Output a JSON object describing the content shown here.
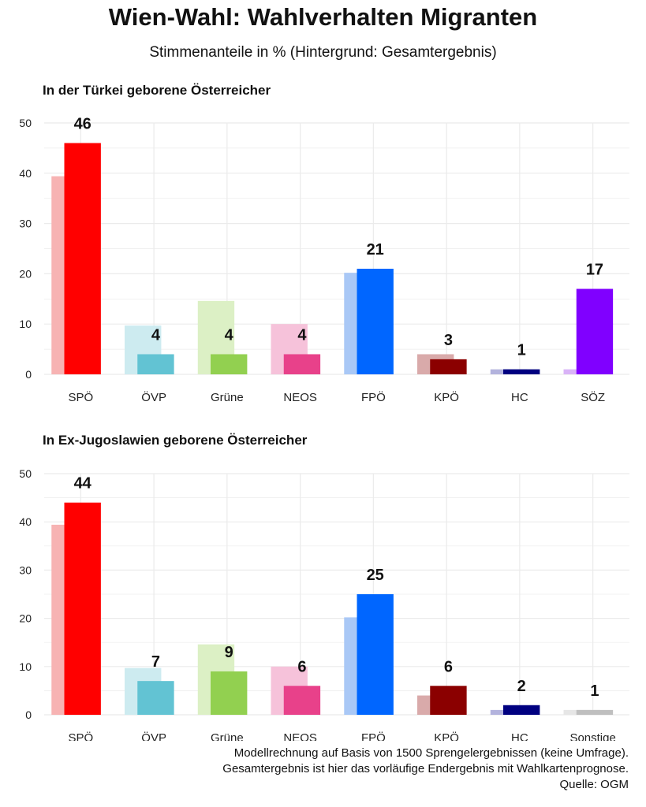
{
  "title": "Wien-Wahl: Wahlverhalten Migranten",
  "subtitle": "Stimmenanteile in % (Hintergrund: Gesamtergebnis)",
  "footer": {
    "line1": "Modellrechnung auf Basis von 1500 Sprengelergebnissen (keine Umfrage).",
    "line2": "Gesamtergebnis ist hier das vorläufige Endergebnis mit Wahlkartenprognose.",
    "line3": "Quelle: OGM"
  },
  "chart_data": [
    {
      "type": "bar",
      "title": "In der Türkei geborene Österreicher",
      "categories": [
        "SPÖ",
        "ÖVP",
        "Grüne",
        "NEOS",
        "FPÖ",
        "KPÖ",
        "HC",
        "SÖZ"
      ],
      "colors": [
        "#ff0000",
        "#62c3d3",
        "#92d050",
        "#e8418a",
        "#0066ff",
        "#8b0000",
        "#000080",
        "#8000ff"
      ],
      "background_colors": [
        "#f7b3b3",
        "#cdebf0",
        "#dcf0c5",
        "#f6c2da",
        "#a9c8f6",
        "#d9aaaa",
        "#b3b3dd",
        "#d9b3f7"
      ],
      "series": [
        {
          "name": "Gesamtergebnis",
          "values": [
            39.4,
            9.7,
            14.6,
            10.0,
            20.2,
            4.0,
            1.0,
            1.0
          ]
        },
        {
          "values": [
            46,
            4,
            4,
            4,
            21,
            3,
            1,
            17
          ]
        }
      ],
      "ylim": [
        0,
        50
      ],
      "yticks": [
        0,
        10,
        20,
        30,
        40,
        50
      ],
      "grid": true
    },
    {
      "type": "bar",
      "title": "In Ex-Jugoslawien geborene Österreicher",
      "categories": [
        "SPÖ",
        "ÖVP",
        "Grüne",
        "NEOS",
        "FPÖ",
        "KPÖ",
        "HC",
        "Sonstige"
      ],
      "colors": [
        "#ff0000",
        "#62c3d3",
        "#92d050",
        "#e8418a",
        "#0066ff",
        "#8b0000",
        "#000080",
        "#bfbfbf"
      ],
      "background_colors": [
        "#f7b3b3",
        "#cdebf0",
        "#dcf0c5",
        "#f6c2da",
        "#a9c8f6",
        "#d9aaaa",
        "#b3b3dd",
        "#e6e6e6"
      ],
      "series": [
        {
          "name": "Gesamtergebnis",
          "values": [
            39.4,
            9.7,
            14.6,
            10.0,
            20.2,
            4.0,
            1.0,
            1.0
          ]
        },
        {
          "values": [
            44,
            7,
            9,
            6,
            25,
            6,
            2,
            1
          ]
        }
      ],
      "ylim": [
        0,
        50
      ],
      "yticks": [
        0,
        10,
        20,
        30,
        40,
        50
      ],
      "grid": true
    }
  ]
}
